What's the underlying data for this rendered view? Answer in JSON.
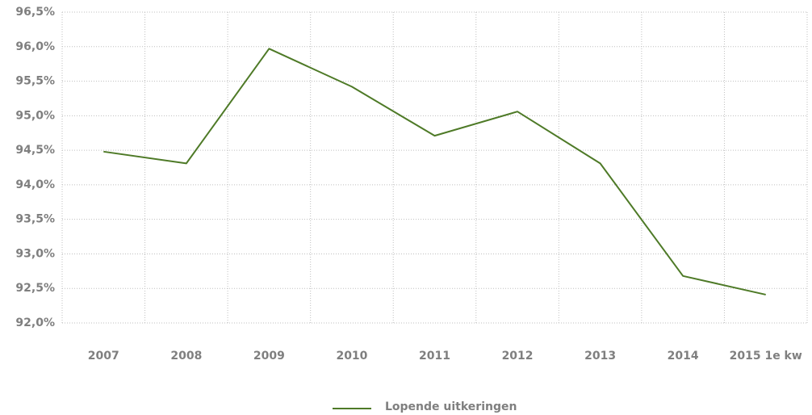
{
  "chart_data": {
    "type": "line",
    "categories": [
      "2007",
      "2008",
      "2009",
      "2010",
      "2011",
      "2012",
      "2013",
      "2014",
      "2015 1e kw"
    ],
    "series": [
      {
        "name": "Lopende uitkeringen",
        "color": "#4e7a27",
        "values": [
          94.48,
          94.31,
          95.97,
          95.42,
          94.71,
          95.06,
          94.31,
          92.68,
          92.41
        ]
      }
    ],
    "ylim": [
      92.0,
      96.5
    ],
    "yticks": [
      {
        "value": 92.0,
        "label": "92,0%"
      },
      {
        "value": 92.5,
        "label": "92,5%"
      },
      {
        "value": 93.0,
        "label": "93,0%"
      },
      {
        "value": 93.5,
        "label": "93,5%"
      },
      {
        "value": 94.0,
        "label": "94,0%"
      },
      {
        "value": 94.5,
        "label": "94,5%"
      },
      {
        "value": 95.0,
        "label": "95,0%"
      },
      {
        "value": 95.5,
        "label": "95,5%"
      },
      {
        "value": 96.0,
        "label": "96,0%"
      },
      {
        "value": 96.5,
        "label": "96,5%"
      }
    ],
    "grid": true,
    "legend": "bottom"
  }
}
